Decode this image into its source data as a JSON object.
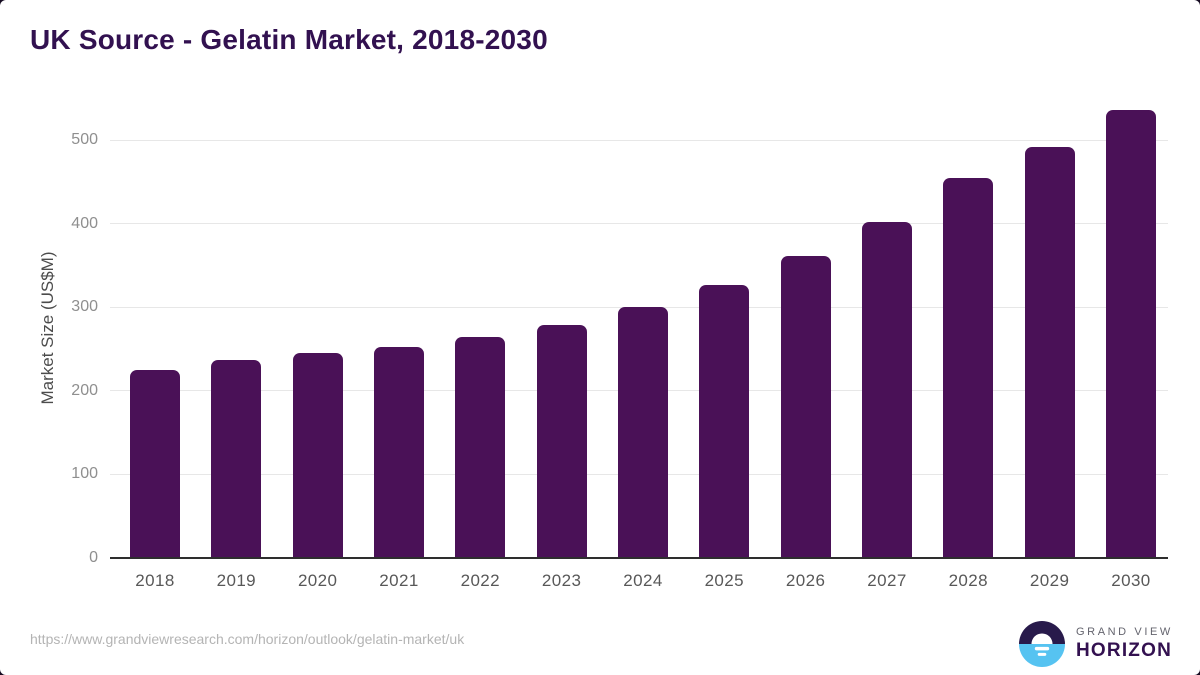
{
  "header": {
    "title": "UK Source - Gelatin Market, 2018-2030"
  },
  "footer": {
    "source_url": "https://www.grandviewresearch.com/horizon/outlook/gelatin-market/uk",
    "logo_line1": "GRAND VIEW",
    "logo_line2": "HORIZON"
  },
  "colors": {
    "title": "#321150",
    "bar": "#4a1157",
    "grid_line": "#e7e7e7",
    "axis_line": "#2e2e2e",
    "y_tick_label": "#8f8f8f",
    "x_tick_label": "#585858",
    "footer_url": "#b4b4b4",
    "logo_blue": "#56c3f1",
    "logo_dark_purple": "#281a4b"
  },
  "chart_data": {
    "type": "bar",
    "title": "UK Source - Gelatin Market, 2018-2030",
    "xlabel": "",
    "ylabel": "Market Size (US$M)",
    "categories": [
      "2018",
      "2019",
      "2020",
      "2021",
      "2022",
      "2023",
      "2024",
      "2025",
      "2026",
      "2027",
      "2028",
      "2029",
      "2030"
    ],
    "values": [
      225,
      237,
      245,
      252,
      264,
      279,
      300,
      327,
      361,
      402,
      455,
      492,
      536
    ],
    "yticks": [
      0,
      100,
      200,
      300,
      400,
      500
    ],
    "ylim": [
      0,
      550
    ],
    "grid": true,
    "legend_position": "none",
    "bar_color": "#4a1157"
  }
}
